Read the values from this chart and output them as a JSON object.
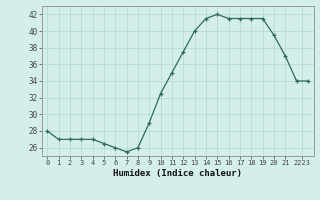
{
  "x": [
    0,
    1,
    2,
    3,
    4,
    5,
    6,
    7,
    8,
    9,
    10,
    11,
    12,
    13,
    14,
    15,
    16,
    17,
    18,
    19,
    20,
    21,
    22,
    23
  ],
  "y": [
    28,
    27,
    27,
    27,
    27,
    26.5,
    26,
    25.5,
    26,
    29,
    32.5,
    35,
    37.5,
    40,
    41.5,
    42,
    41.5,
    41.5,
    41.5,
    41.5,
    39.5,
    37,
    34,
    34
  ],
  "xlabel": "Humidex (Indice chaleur)",
  "ylim": [
    25,
    43
  ],
  "xlim": [
    -0.5,
    23.5
  ],
  "yticks": [
    26,
    28,
    30,
    32,
    34,
    36,
    38,
    40,
    42
  ],
  "xtick_positions": [
    0,
    1,
    2,
    3,
    4,
    5,
    6,
    7,
    8,
    9,
    10,
    11,
    12,
    13,
    14,
    15,
    16,
    17,
    18,
    19,
    20,
    21,
    22.5
  ],
  "xtick_labels": [
    "0",
    "1",
    "2",
    "3",
    "4",
    "5",
    "6",
    "7",
    "8",
    "9",
    "10",
    "11",
    "12",
    "13",
    "14",
    "15",
    "16",
    "17",
    "18",
    "19",
    "20",
    "21",
    "2223"
  ],
  "line_color": "#2d6b5e",
  "marker": "+",
  "bg_color": "#d4eeeb",
  "grid_color": "#b8dbd8",
  "spine_color": "#999999",
  "tick_color": "#444444",
  "xlabel_color": "#111111",
  "xlabel_fontsize": 6.5,
  "ytick_fontsize": 5.5,
  "xtick_fontsize": 5.0
}
